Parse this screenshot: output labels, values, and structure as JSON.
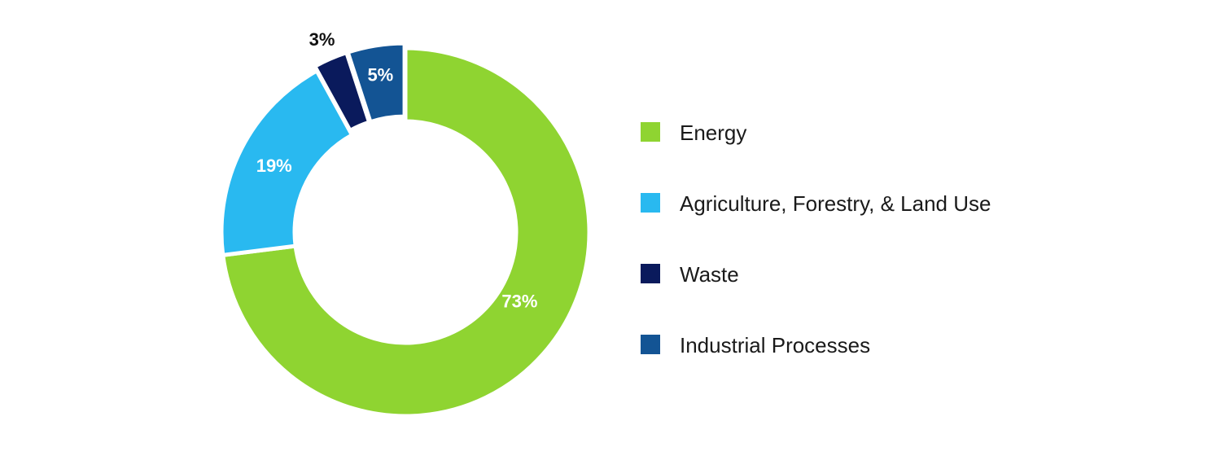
{
  "chart_data": {
    "type": "pie",
    "variant": "donut",
    "categories": [
      "Energy",
      "Agriculture, Forestry, & Land Use",
      "Waste",
      "Industrial Processes"
    ],
    "values": [
      73,
      19,
      3,
      5
    ],
    "data_labels": [
      "73%",
      "19%",
      "3%",
      "5%"
    ],
    "colors": [
      "#8fd431",
      "#29b9f0",
      "#0a1a5c",
      "#135494"
    ],
    "label_colors": [
      "#ffffff",
      "#ffffff",
      "#111111",
      "#ffffff"
    ],
    "unit": "%",
    "legend_position": "right",
    "start_angle": "top, clockwise"
  }
}
